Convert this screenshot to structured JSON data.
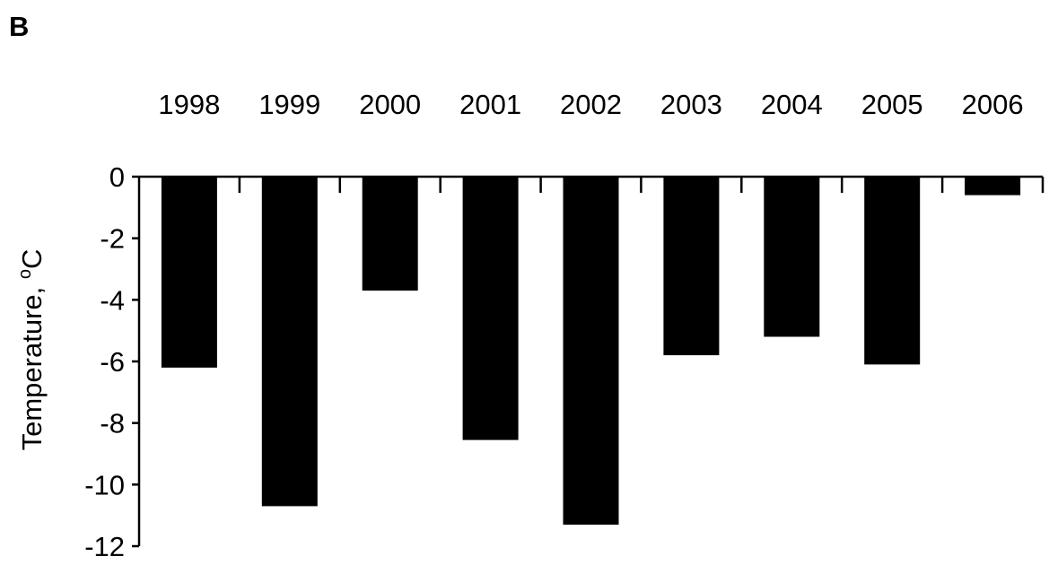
{
  "panel_label": "B",
  "chart_data": {
    "type": "bar",
    "categories": [
      "1998",
      "1999",
      "2000",
      "2001",
      "2002",
      "2003",
      "2004",
      "2005",
      "2006"
    ],
    "values": [
      -6.2,
      -10.7,
      -3.7,
      -8.55,
      -11.3,
      -5.8,
      -5.2,
      -6.1,
      -0.6
    ],
    "title": "",
    "xlabel": "",
    "ylabel": "Temperature, ",
    "ylabel_unit": "oC",
    "ylim": [
      -12,
      0
    ],
    "yticks": [
      0,
      -2,
      -4,
      -6,
      -8,
      -10,
      -12
    ],
    "x_axis_position": "top",
    "grid": false,
    "legend": "none",
    "bar_color": "#000000",
    "axis_color": "#000000"
  }
}
